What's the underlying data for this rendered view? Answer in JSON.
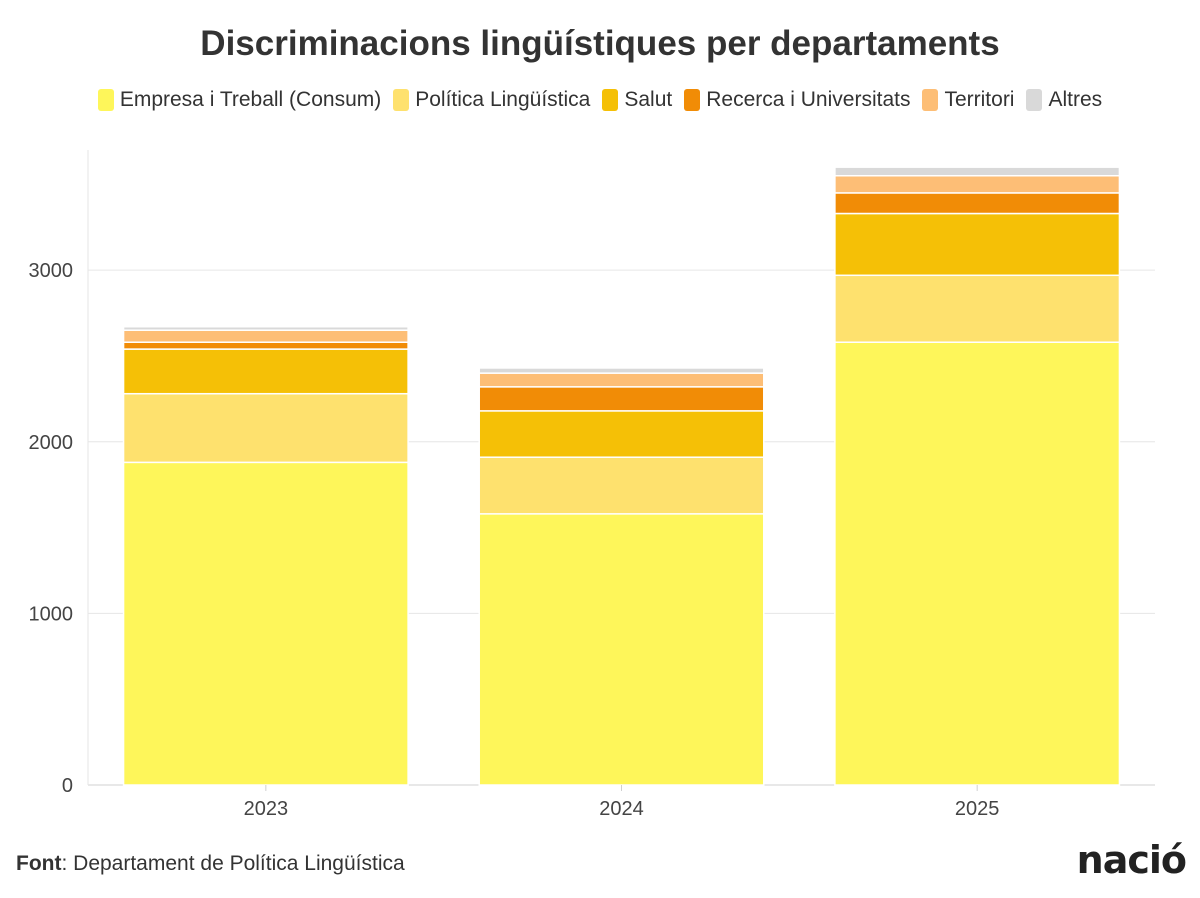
{
  "chart_data": {
    "type": "bar",
    "stacked": true,
    "title": "Discriminacions lingüístiques per departaments",
    "categories": [
      "2023",
      "2024",
      "2025"
    ],
    "series": [
      {
        "name": "Empresa i Treball (Consum)",
        "color": "#fef65a",
        "values": [
          1880,
          1580,
          2580
        ]
      },
      {
        "name": "Política Lingüística",
        "color": "#fee16e",
        "values": [
          400,
          330,
          390
        ]
      },
      {
        "name": "Salut",
        "color": "#f5c006",
        "values": [
          260,
          270,
          360
        ]
      },
      {
        "name": "Recerca i Universitats",
        "color": "#f18c06",
        "values": [
          40,
          140,
          120
        ]
      },
      {
        "name": "Territori",
        "color": "#fdbe76",
        "values": [
          70,
          80,
          100
        ]
      },
      {
        "name": "Altres",
        "color": "#d9d9d9",
        "values": [
          20,
          30,
          50
        ]
      }
    ],
    "yticks": [
      0,
      1000,
      2000,
      3000
    ],
    "ylim": [
      0,
      3700
    ],
    "grid": true,
    "legend_position": "top"
  },
  "footer": {
    "source_label": "Font",
    "source_text": ": Departament de Política Lingüística"
  },
  "logo_text": "nació"
}
